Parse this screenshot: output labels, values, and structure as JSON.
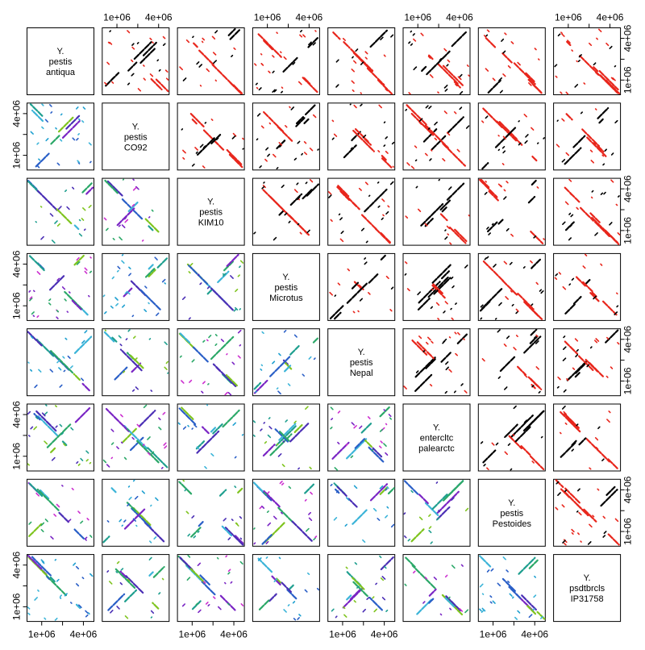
{
  "chart_data": {
    "type": "scatter",
    "title": "",
    "layout": "pairs-matrix",
    "description_hint": "8x8 pairwise genome alignment dot-plot matrix of Yersinia genomes",
    "genomes": [
      {
        "id": "antiqua",
        "lines": [
          "Y.",
          "pestis",
          "antiqua"
        ]
      },
      {
        "id": "co92",
        "lines": [
          "Y.",
          "pestis",
          "CO92"
        ]
      },
      {
        "id": "kim10",
        "lines": [
          "Y.",
          "pestis",
          "KIM10"
        ]
      },
      {
        "id": "microtus",
        "lines": [
          "Y.",
          "pestis",
          "Microtus"
        ]
      },
      {
        "id": "nepal",
        "lines": [
          "Y.",
          "pestis",
          "Nepal"
        ]
      },
      {
        "id": "palearctc",
        "lines": [
          "Y.",
          "entercltc",
          "palearctc"
        ]
      },
      {
        "id": "pestoides",
        "lines": [
          "Y.",
          "pestis",
          "Pestoides"
        ]
      },
      {
        "id": "ip31758",
        "lines": [
          "Y.",
          "psdtbrcls",
          "IP31758"
        ]
      }
    ],
    "axis": {
      "range": [
        0,
        4700000
      ],
      "ticks": [
        1000000,
        2500000,
        4000000
      ],
      "tick_labels": [
        "1e+06",
        "4e+06"
      ],
      "labeled_ticks": [
        1000000,
        4000000
      ]
    },
    "upper_colors": {
      "forward": "#000000",
      "reverse": "#e8261c"
    },
    "lower_colors": [
      "#1f9f8f",
      "#2ba868",
      "#2a5fc7",
      "#4b2fb5",
      "#7a25c4",
      "#3cb4d8",
      "#7fc41f"
    ],
    "lower_minor_colors": [
      "#cc2fcf",
      "#1fa0d0"
    ],
    "synteny": [
      [
        null,
        "antiqua|co92",
        "antiqua|kim10",
        "antiqua|microtus",
        "antiqua|nepal",
        "antiqua|palearctc",
        "antiqua|pestoides",
        "antiqua|ip31758"
      ]
    ]
  }
}
